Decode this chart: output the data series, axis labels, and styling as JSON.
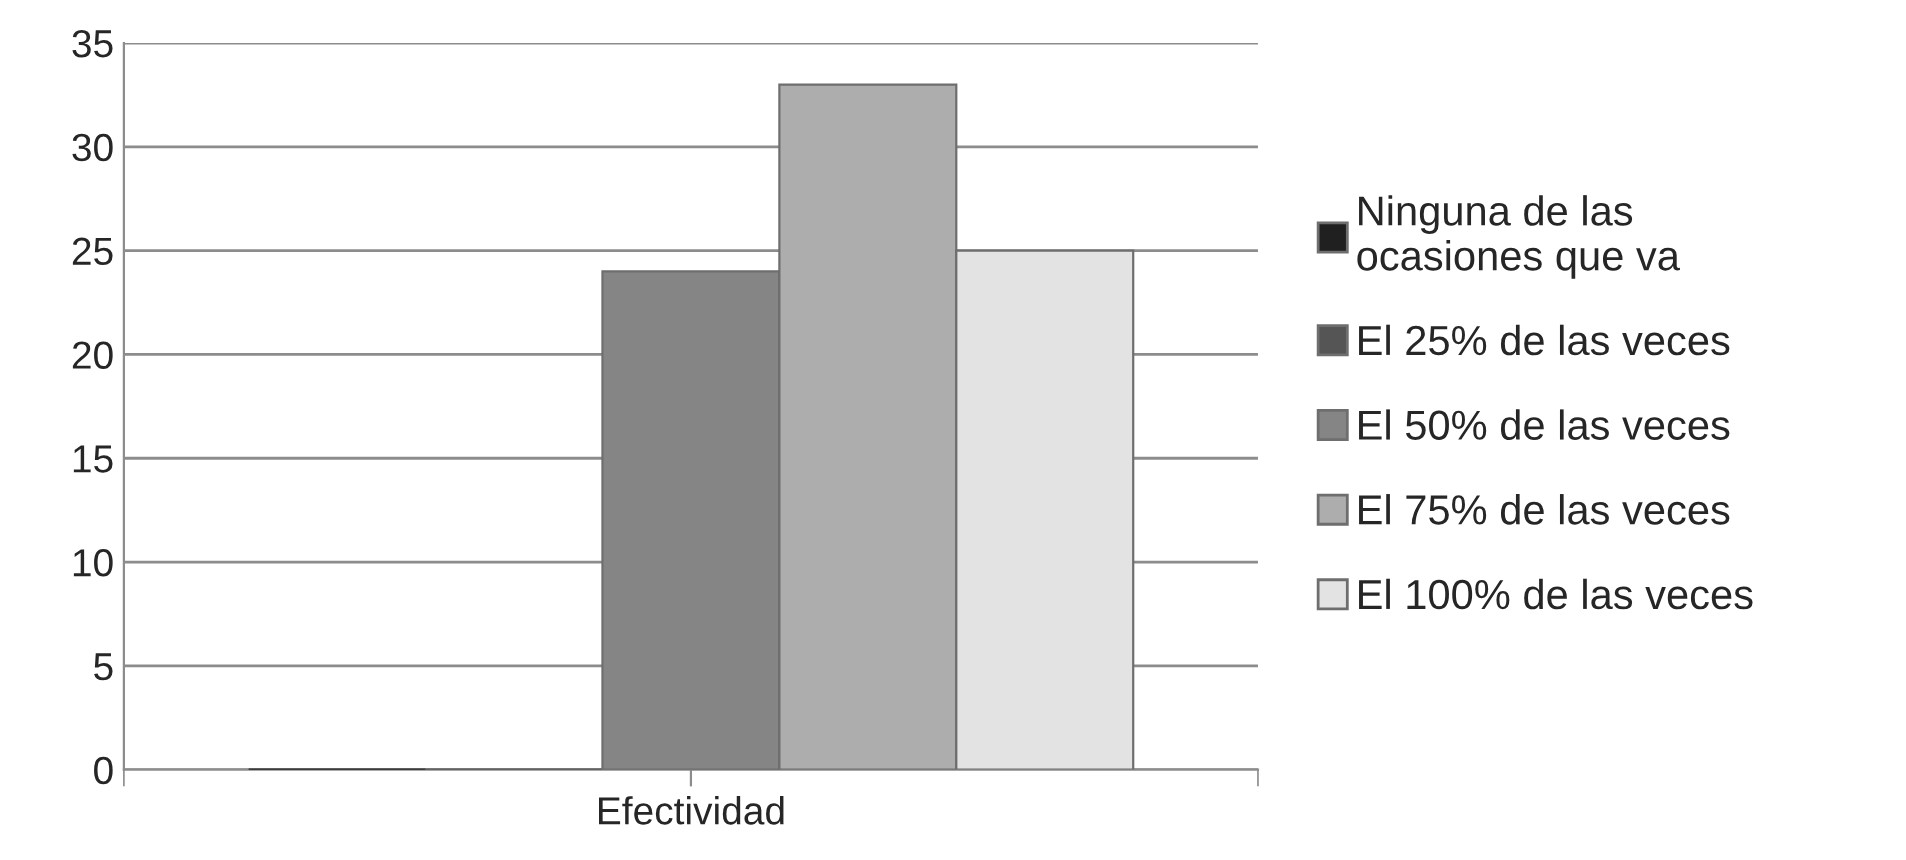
{
  "chart_data": {
    "type": "bar",
    "categories": [
      "Efectividad"
    ],
    "series": [
      {
        "name": "Ninguna de las\nocasiones que va",
        "color": "#202020",
        "values": [
          0
        ]
      },
      {
        "name": "El 25% de las veces",
        "color": "#555555",
        "values": [
          0
        ]
      },
      {
        "name": "El 50% de las veces",
        "color": "#858585",
        "values": [
          24
        ]
      },
      {
        "name": "El 75% de las veces",
        "color": "#adadad",
        "values": [
          33
        ]
      },
      {
        "name": "El 100% de las veces",
        "color": "#e3e3e3",
        "values": [
          25
        ]
      }
    ],
    "ylim": [
      0,
      35
    ],
    "yticks": [
      0,
      5,
      10,
      15,
      20,
      25,
      30,
      35
    ],
    "grid": "y",
    "legend": "right"
  }
}
